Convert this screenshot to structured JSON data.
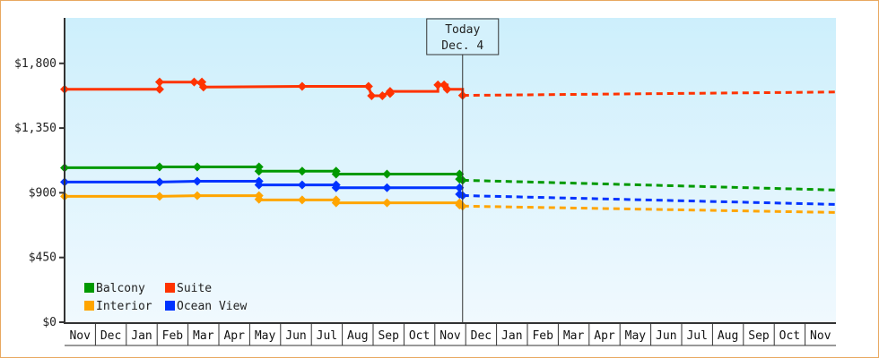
{
  "chart_data": {
    "type": "line",
    "title": "",
    "xlabel": "",
    "ylabel": "",
    "ylim": [
      0,
      2160
    ],
    "y_ticks": [
      {
        "value": 0,
        "label": "$0"
      },
      {
        "value": 450,
        "label": "$450"
      },
      {
        "value": 900,
        "label": "$900"
      },
      {
        "value": 1350,
        "label": "$1,350"
      },
      {
        "value": 1800,
        "label": "$1,800"
      }
    ],
    "months": [
      "Nov",
      "Dec",
      "Jan",
      "Feb",
      "Mar",
      "Apr",
      "May",
      "Jun",
      "Jul",
      "Aug",
      "Sep",
      "Oct",
      "Nov",
      "Dec",
      "Jan",
      "Feb",
      "Mar",
      "Apr",
      "May",
      "Jun",
      "Jul",
      "Aug",
      "Sep",
      "Oct",
      "Nov"
    ],
    "today_marker": {
      "line1": "Today",
      "line2": "Dec. 4",
      "month_index": 12.9
    },
    "legend": [
      {
        "name": "Balcony",
        "color": "#009900"
      },
      {
        "name": "Suite",
        "color": "#ff3300"
      },
      {
        "name": "Interior",
        "color": "#ffa500"
      },
      {
        "name": "Ocean View",
        "color": "#0033ff"
      }
    ],
    "series": [
      {
        "name": "Suite",
        "color": "#ff3300",
        "history": [
          [
            0,
            1620
          ],
          [
            3.08,
            1620
          ],
          [
            3.08,
            1670
          ],
          [
            4.3,
            1670
          ],
          [
            4.5,
            1635
          ],
          [
            7.7,
            1640
          ],
          [
            9.85,
            1640
          ],
          [
            9.95,
            1575
          ],
          [
            10.3,
            1575
          ],
          [
            10.55,
            1605
          ],
          [
            12.1,
            1605
          ],
          [
            12.1,
            1650
          ],
          [
            12.4,
            1650
          ],
          [
            12.4,
            1620
          ],
          [
            12.9,
            1620
          ],
          [
            12.9,
            1577
          ]
        ],
        "markers": [
          [
            0,
            1620
          ],
          [
            3.08,
            1620
          ],
          [
            3.08,
            1670
          ],
          [
            4.2,
            1670
          ],
          [
            4.45,
            1670
          ],
          [
            4.5,
            1635
          ],
          [
            7.7,
            1640
          ],
          [
            9.85,
            1640
          ],
          [
            9.95,
            1575
          ],
          [
            10.3,
            1575
          ],
          [
            10.55,
            1590
          ],
          [
            10.55,
            1605
          ],
          [
            12.1,
            1650
          ],
          [
            12.3,
            1650
          ],
          [
            12.4,
            1620
          ],
          [
            12.9,
            1577
          ]
        ],
        "forecast": [
          [
            12.9,
            1577
          ],
          [
            25,
            1601
          ]
        ]
      },
      {
        "name": "Balcony",
        "color": "#009900",
        "history": [
          [
            0,
            1074
          ],
          [
            3.08,
            1074
          ],
          [
            3.08,
            1080
          ],
          [
            4.3,
            1080
          ],
          [
            6.3,
            1080
          ],
          [
            6.3,
            1050
          ],
          [
            7.7,
            1050
          ],
          [
            8.8,
            1050
          ],
          [
            8.8,
            1030
          ],
          [
            10.45,
            1030
          ],
          [
            12.8,
            1030
          ],
          [
            12.8,
            987
          ],
          [
            12.9,
            987
          ]
        ],
        "markers": [
          [
            0,
            1074
          ],
          [
            3.08,
            1080
          ],
          [
            4.3,
            1080
          ],
          [
            6.3,
            1080
          ],
          [
            6.3,
            1050
          ],
          [
            7.7,
            1050
          ],
          [
            8.8,
            1050
          ],
          [
            8.8,
            1030
          ],
          [
            10.45,
            1030
          ],
          [
            12.8,
            1030
          ],
          [
            12.8,
            995
          ],
          [
            12.9,
            987
          ]
        ],
        "forecast": [
          [
            12.9,
            987
          ],
          [
            25,
            919
          ]
        ]
      },
      {
        "name": "Ocean View",
        "color": "#0033ff",
        "history": [
          [
            0,
            975
          ],
          [
            3.08,
            975
          ],
          [
            4.3,
            980
          ],
          [
            6.3,
            980
          ],
          [
            6.3,
            955
          ],
          [
            7.7,
            955
          ],
          [
            8.8,
            955
          ],
          [
            8.8,
            935
          ],
          [
            10.45,
            935
          ],
          [
            12.8,
            935
          ],
          [
            12.8,
            881
          ],
          [
            12.9,
            881
          ]
        ],
        "markers": [
          [
            0,
            975
          ],
          [
            3.08,
            975
          ],
          [
            4.3,
            980
          ],
          [
            6.3,
            980
          ],
          [
            6.3,
            955
          ],
          [
            7.7,
            955
          ],
          [
            8.8,
            955
          ],
          [
            8.8,
            935
          ],
          [
            10.45,
            935
          ],
          [
            12.8,
            935
          ],
          [
            12.8,
            890
          ],
          [
            12.9,
            881
          ]
        ],
        "forecast": [
          [
            12.9,
            881
          ],
          [
            25,
            819
          ]
        ]
      },
      {
        "name": "Interior",
        "color": "#ffa500",
        "history": [
          [
            0,
            875
          ],
          [
            3.08,
            875
          ],
          [
            4.3,
            880
          ],
          [
            6.3,
            880
          ],
          [
            6.3,
            850
          ],
          [
            7.7,
            850
          ],
          [
            8.8,
            850
          ],
          [
            8.8,
            830
          ],
          [
            10.45,
            830
          ],
          [
            12.8,
            830
          ],
          [
            12.8,
            807
          ],
          [
            12.9,
            807
          ]
        ],
        "markers": [
          [
            0,
            875
          ],
          [
            3.08,
            875
          ],
          [
            4.3,
            880
          ],
          [
            6.3,
            880
          ],
          [
            6.3,
            855
          ],
          [
            7.7,
            850
          ],
          [
            8.8,
            850
          ],
          [
            8.8,
            830
          ],
          [
            10.45,
            830
          ],
          [
            12.8,
            830
          ],
          [
            12.8,
            815
          ],
          [
            12.9,
            807
          ]
        ],
        "forecast": [
          [
            12.9,
            807
          ],
          [
            25,
            763
          ]
        ]
      }
    ]
  }
}
